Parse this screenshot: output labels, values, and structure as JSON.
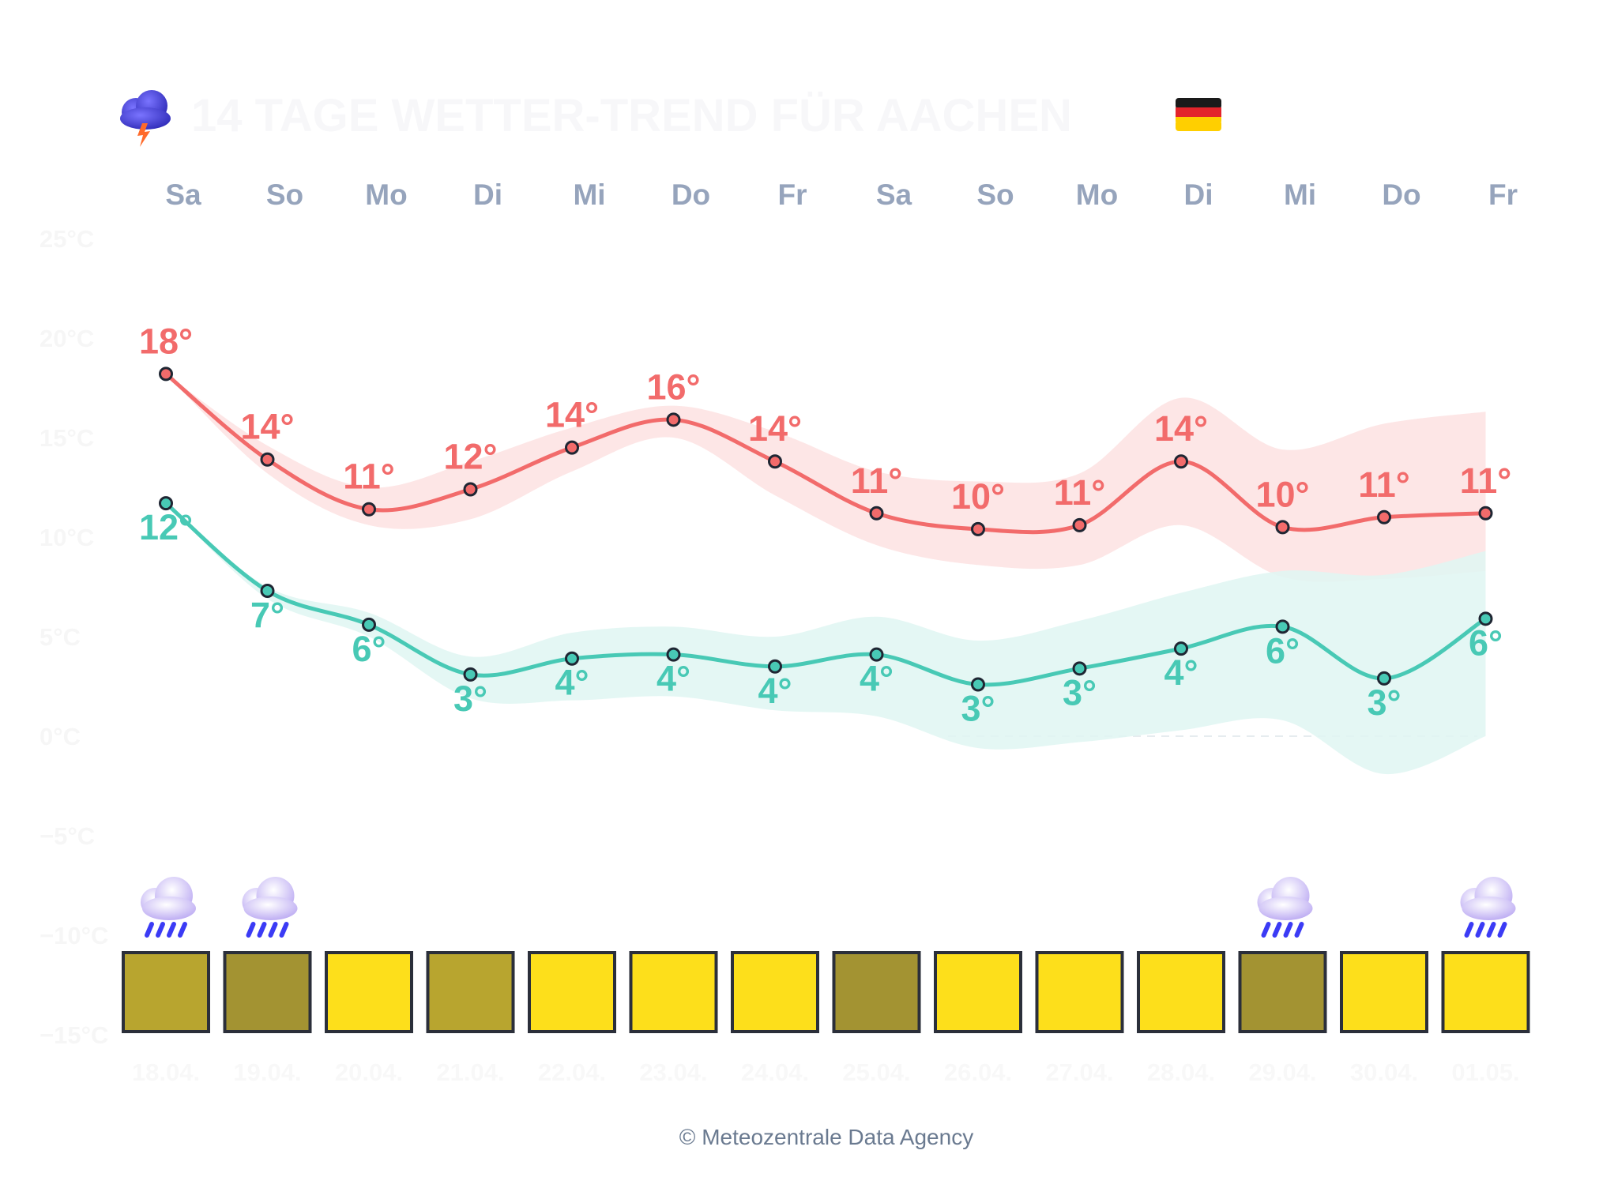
{
  "title": "14 TAGE WETTER-TREND FÜR AACHEN",
  "icons": {
    "title_icon": "thunder-cloud-icon",
    "flag": "germany-flag-icon",
    "rain": "rain-cloud-icon"
  },
  "colors": {
    "high": "#f26b6b",
    "high_band": "#fde2e2",
    "low": "#48c9b5",
    "low_band": "#dff6f2",
    "sun_full": "#fddf1b",
    "sun_medium": "#b8a52f",
    "sun_low": "#a39332",
    "box_border": "#2b2f3a",
    "day_label": "#96a4bc"
  },
  "credit": "© Meteozentrale Data Agency",
  "chart_data": {
    "type": "line",
    "x": [
      "18.04.",
      "19.04.",
      "20.04.",
      "21.04.",
      "22.04.",
      "23.04.",
      "24.04.",
      "25.04.",
      "26.04.",
      "27.04.",
      "28.04.",
      "29.04.",
      "30.04.",
      "01.05."
    ],
    "days": [
      "Sa",
      "So",
      "Mo",
      "Di",
      "Mi",
      "Do",
      "Fr",
      "Sa",
      "So",
      "Mo",
      "Di",
      "Mi",
      "Do",
      "Fr"
    ],
    "ylim": [
      -15,
      25
    ],
    "yticks": [
      "25°C",
      "20°C",
      "15°C",
      "10°C",
      "5°C",
      "0°C",
      "−5°C",
      "−10°C",
      "−15°C"
    ],
    "ytick_values": [
      25,
      20,
      15,
      10,
      5,
      0,
      -5,
      -10,
      -15
    ],
    "series": [
      {
        "values": [
          18.2,
          13.9,
          11.4,
          12.4,
          14.5,
          15.9,
          13.8,
          11.2,
          10.4,
          10.6,
          13.8,
          10.5,
          11.0,
          11.2
        ],
        "labels": [
          "18°",
          "14°",
          "11°",
          "12°",
          "14°",
          "16°",
          "14°",
          "11°",
          "10°",
          "11°",
          "14°",
          "10°",
          "11°",
          "11°"
        ],
        "band_upper": [
          18.2,
          14.6,
          12.5,
          13.8,
          15.5,
          16.6,
          15.3,
          13.3,
          12.8,
          13.2,
          17.0,
          14.4,
          15.7,
          16.3
        ],
        "band_lower": [
          18.2,
          13.2,
          10.6,
          10.9,
          13.3,
          15.0,
          12.1,
          9.6,
          8.6,
          8.6,
          10.6,
          8.0,
          7.9,
          8.3
        ]
      },
      {
        "values": [
          11.7,
          7.3,
          5.6,
          3.1,
          3.9,
          4.1,
          3.5,
          4.1,
          2.6,
          3.4,
          4.4,
          5.5,
          2.9,
          5.9
        ],
        "labels": [
          "12°",
          "7°",
          "6°",
          "3°",
          "4°",
          "4°",
          "4°",
          "4°",
          "3°",
          "3°",
          "4°",
          "6°",
          "3°",
          "6°"
        ],
        "band_upper": [
          11.7,
          7.5,
          6.2,
          4.0,
          5.2,
          5.5,
          5.0,
          6.0,
          4.8,
          5.8,
          7.2,
          8.3,
          8.1,
          9.3
        ],
        "band_lower": [
          11.7,
          6.9,
          5.0,
          1.9,
          1.8,
          2.0,
          1.3,
          1.0,
          -0.6,
          -0.3,
          0.3,
          0.8,
          -1.9,
          0.0
        ]
      }
    ],
    "sunshine": [
      "medium",
      "low",
      "full",
      "medium",
      "full",
      "full",
      "full",
      "low",
      "full",
      "full",
      "full",
      "low",
      "full",
      "full"
    ],
    "rain": [
      true,
      true,
      false,
      false,
      false,
      false,
      false,
      false,
      false,
      false,
      false,
      true,
      false,
      true
    ],
    "grid": false
  }
}
